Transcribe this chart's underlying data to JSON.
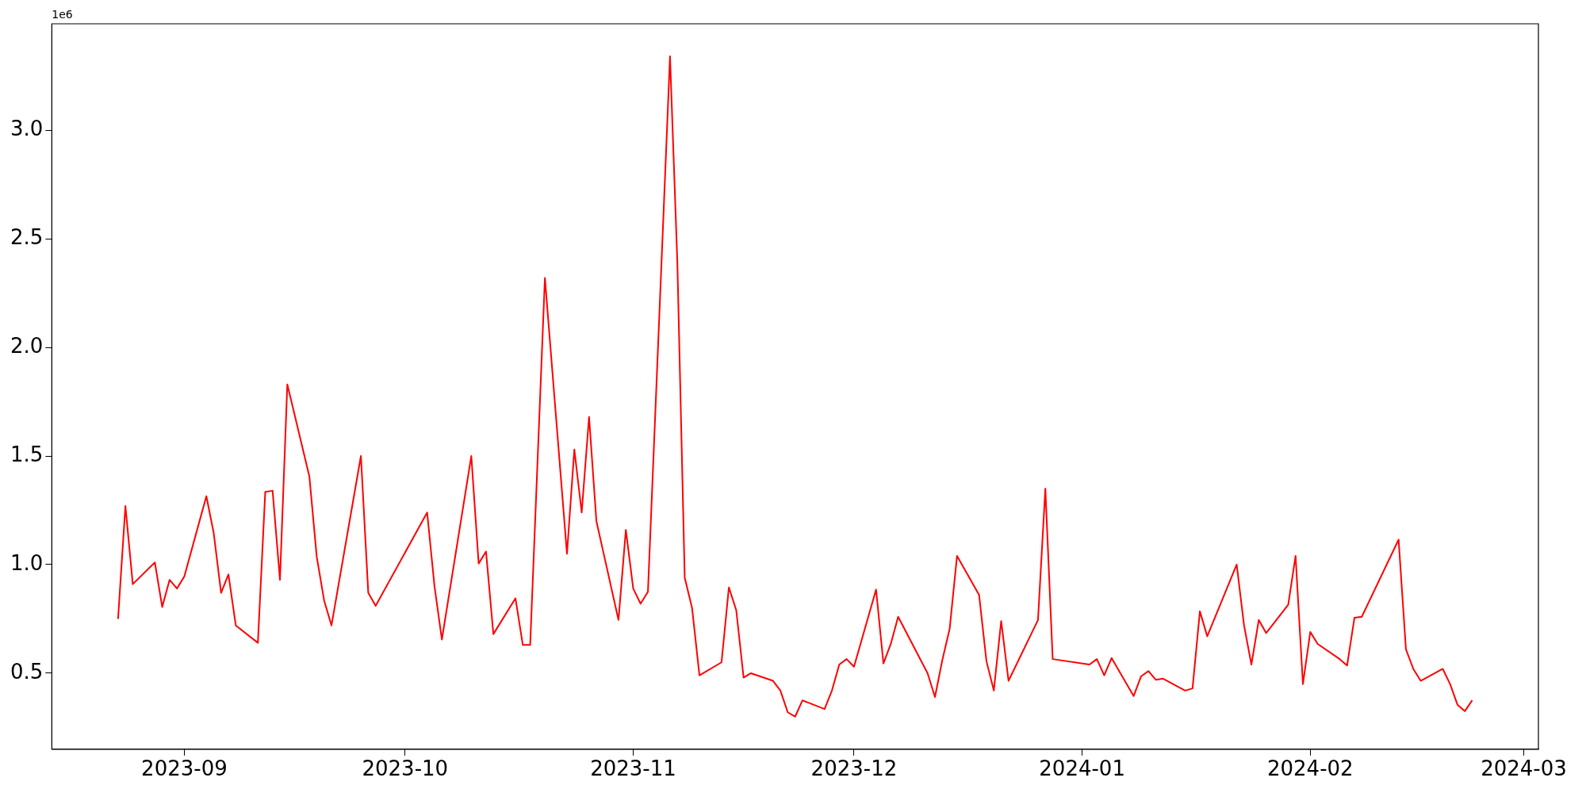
{
  "chart_data": {
    "type": "line",
    "annotations": [
      "1e6"
    ],
    "x": [
      "2023-08-23",
      "2023-08-24",
      "2023-08-25",
      "2023-08-28",
      "2023-08-29",
      "2023-08-30",
      "2023-08-31",
      "2023-09-01",
      "2023-09-04",
      "2023-09-05",
      "2023-09-06",
      "2023-09-07",
      "2023-09-08",
      "2023-09-11",
      "2023-09-12",
      "2023-09-13",
      "2023-09-14",
      "2023-09-15",
      "2023-09-18",
      "2023-09-19",
      "2023-09-20",
      "2023-09-21",
      "2023-09-25",
      "2023-09-26",
      "2023-09-27",
      "2023-10-04",
      "2023-10-05",
      "2023-10-06",
      "2023-10-10",
      "2023-10-11",
      "2023-10-12",
      "2023-10-13",
      "2023-10-16",
      "2023-10-17",
      "2023-10-18",
      "2023-10-20",
      "2023-10-23",
      "2023-10-24",
      "2023-10-25",
      "2023-10-26",
      "2023-10-27",
      "2023-10-30",
      "2023-10-31",
      "2023-11-01",
      "2023-11-02",
      "2023-11-03",
      "2023-11-06",
      "2023-11-07",
      "2023-11-08",
      "2023-11-09",
      "2023-11-10",
      "2023-11-13",
      "2023-11-14",
      "2023-11-15",
      "2023-11-16",
      "2023-11-17",
      "2023-11-20",
      "2023-11-21",
      "2023-11-22",
      "2023-11-23",
      "2023-11-24",
      "2023-11-27",
      "2023-11-28",
      "2023-11-29",
      "2023-11-30",
      "2023-12-01",
      "2023-12-04",
      "2023-12-05",
      "2023-12-06",
      "2023-12-07",
      "2023-12-11",
      "2023-12-12",
      "2023-12-13",
      "2023-12-14",
      "2023-12-15",
      "2023-12-18",
      "2023-12-19",
      "2023-12-20",
      "2023-12-21",
      "2023-12-22",
      "2023-12-26",
      "2023-12-27",
      "2023-12-28",
      "2024-01-02",
      "2024-01-03",
      "2024-01-04",
      "2024-01-05",
      "2024-01-08",
      "2024-01-09",
      "2024-01-10",
      "2024-01-11",
      "2024-01-12",
      "2024-01-15",
      "2024-01-16",
      "2024-01-17",
      "2024-01-18",
      "2024-01-22",
      "2024-01-23",
      "2024-01-24",
      "2024-01-25",
      "2024-01-26",
      "2024-01-29",
      "2024-01-30",
      "2024-01-31",
      "2024-02-01",
      "2024-02-02",
      "2024-02-05",
      "2024-02-06",
      "2024-02-07",
      "2024-02-08",
      "2024-02-13",
      "2024-02-14",
      "2024-02-15",
      "2024-02-16",
      "2024-02-19",
      "2024-02-20",
      "2024-02-21",
      "2024-02-22",
      "2024-02-23"
    ],
    "series": [
      {
        "color": "#ff0000",
        "values": [
          0.75,
          1.27,
          0.91,
          1.01,
          0.805,
          0.93,
          0.89,
          0.945,
          1.315,
          1.145,
          0.87,
          0.955,
          0.72,
          0.64,
          1.335,
          1.34,
          0.93,
          1.83,
          1.405,
          1.035,
          0.835,
          0.72,
          1.5,
          0.87,
          0.81,
          1.24,
          0.9,
          0.655,
          1.5,
          1.005,
          1.06,
          0.68,
          0.845,
          0.63,
          0.63,
          2.32,
          1.05,
          1.53,
          1.24,
          1.68,
          1.2,
          0.745,
          1.16,
          0.89,
          0.82,
          0.875,
          3.34,
          2.39,
          0.94,
          0.8,
          0.49,
          0.55,
          0.895,
          0.79,
          0.48,
          0.5,
          0.465,
          0.42,
          0.32,
          0.3,
          0.375,
          0.335,
          0.42,
          0.54,
          0.565,
          0.53,
          0.885,
          0.545,
          0.635,
          0.76,
          0.5,
          0.39,
          0.56,
          0.705,
          1.04,
          0.86,
          0.555,
          0.42,
          0.74,
          0.465,
          0.745,
          1.35,
          0.565,
          0.54,
          0.565,
          0.49,
          0.57,
          0.395,
          0.485,
          0.51,
          0.47,
          0.475,
          0.42,
          0.43,
          0.785,
          0.67,
          1.0,
          0.72,
          0.54,
          0.745,
          0.685,
          0.815,
          1.04,
          0.45,
          0.69,
          0.635,
          0.565,
          0.535,
          0.755,
          0.76,
          1.115,
          0.61,
          0.52,
          0.465,
          0.52,
          0.45,
          0.355,
          0.325,
          0.375
        ]
      }
    ],
    "xlim": [
      "2023-08-14",
      "2024-03-03"
    ],
    "xticks": [
      "2023-09",
      "2023-10",
      "2023-11",
      "2023-12",
      "2024-01",
      "2024-02",
      "2024-03"
    ],
    "ylim": [
      0.15,
      3.49
    ],
    "yticks": [
      0.5,
      {
        "value": 1,
        "label": "1.0"
      },
      1.5,
      {
        "value": 2,
        "label": "2.0"
      },
      2.5,
      {
        "value": 3,
        "label": "3.0"
      }
    ],
    "grid": false,
    "legend": false,
    "marker": "none",
    "line_style": "solid"
  }
}
